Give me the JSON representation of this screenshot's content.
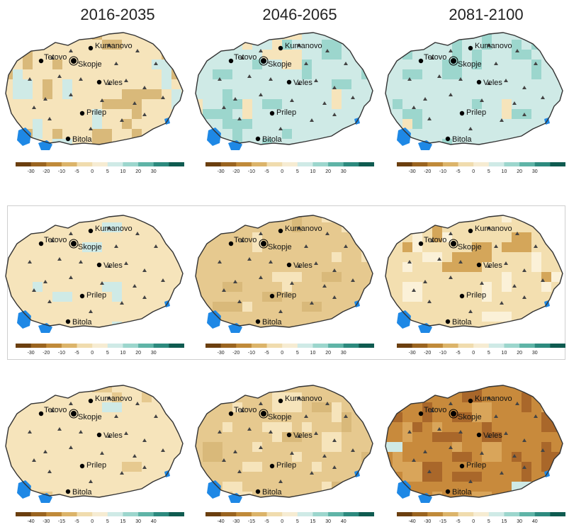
{
  "columns": [
    "2016-2035",
    "2046-2065",
    "2081-2100"
  ],
  "cities": [
    {
      "name": "Kumanovo"
    },
    {
      "name": "Tetovo"
    },
    {
      "name": "Skopje"
    },
    {
      "name": "Veles"
    },
    {
      "name": "Prilep"
    },
    {
      "name": "Bitola"
    }
  ],
  "legend_palette": [
    "#6b3f0f",
    "#9a6420",
    "#c08a3a",
    "#dcb46a",
    "#f0dcae",
    "#f6ecd2",
    "#cfeae6",
    "#9cd6cd",
    "#5fb4a7",
    "#2d8a7e",
    "#0f5b50"
  ],
  "colorbar_rows": [
    {
      "ticks": [
        "-30",
        "-20",
        "-10",
        "-5",
        "0",
        "5",
        "10",
        "20",
        "30"
      ]
    },
    {
      "ticks": [
        "-30",
        "-20",
        "-10",
        "-5",
        "0",
        "5",
        "10",
        "20",
        "30"
      ]
    },
    {
      "ticks": [
        "-40",
        "-30",
        "-15",
        "-5",
        "0",
        "5",
        "15",
        "30",
        "40"
      ]
    }
  ],
  "panels": [
    {
      "row": 0,
      "col": 0,
      "base": "#f6e4bb",
      "blocks": [
        {
          "c": "#d9b97a",
          "n": 22
        },
        {
          "c": "#cfeae6",
          "n": 10
        }
      ]
    },
    {
      "row": 0,
      "col": 1,
      "base": "#cfeae6",
      "blocks": [
        {
          "c": "#9cd6cd",
          "n": 22
        },
        {
          "c": "#f6e4bb",
          "n": 10
        }
      ]
    },
    {
      "row": 0,
      "col": 2,
      "base": "#cfeae6",
      "blocks": [
        {
          "c": "#9cd6cd",
          "n": 20
        },
        {
          "c": "#f6e4bb",
          "n": 2
        }
      ]
    },
    {
      "row": 1,
      "col": 0,
      "base": "#f6e4bb",
      "blocks": [
        {
          "c": "#cfeae6",
          "n": 8
        }
      ]
    },
    {
      "row": 1,
      "col": 1,
      "base": "#e6c98f",
      "blocks": [
        {
          "c": "#f6e4bb",
          "n": 18
        },
        {
          "c": "#d9b97a",
          "n": 10
        }
      ]
    },
    {
      "row": 1,
      "col": 2,
      "base": "#f3dfb0",
      "blocks": [
        {
          "c": "#fbf1d8",
          "n": 18
        },
        {
          "c": "#d4a65a",
          "n": 14
        }
      ]
    },
    {
      "row": 2,
      "col": 0,
      "base": "#f6e4bb",
      "blocks": [
        {
          "c": "#e6c98f",
          "n": 6
        },
        {
          "c": "#cfeae6",
          "n": 1
        }
      ]
    },
    {
      "row": 2,
      "col": 1,
      "base": "#e6c98f",
      "blocks": [
        {
          "c": "#f6e4bb",
          "n": 18
        },
        {
          "c": "#d9b97a",
          "n": 8
        }
      ]
    },
    {
      "row": 2,
      "col": 2,
      "base": "#c88a3c",
      "blocks": [
        {
          "c": "#a9672a",
          "n": 30
        },
        {
          "c": "#d9a55a",
          "n": 16
        },
        {
          "c": "#cfeae6",
          "n": 2
        }
      ]
    }
  ]
}
